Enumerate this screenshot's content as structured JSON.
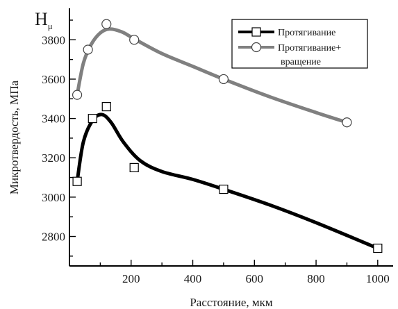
{
  "chart_data": {
    "type": "line",
    "corner_label": {
      "main": "H",
      "sub": "μ"
    },
    "xlabel": "Расстояние, мкм",
    "ylabel": "Микротвердость, МПа",
    "xlim": [
      0,
      1050
    ],
    "ylim": [
      2650,
      3960
    ],
    "x_ticks": [
      200,
      400,
      600,
      800,
      1000
    ],
    "y_ticks": [
      2800,
      3000,
      3200,
      3400,
      3600,
      3800
    ],
    "grid": false,
    "legend_position": "top-right",
    "series": [
      {
        "name": "Протягивание",
        "color": "#000000",
        "marker": "square",
        "points": [
          {
            "x": 25,
            "y": 3080
          },
          {
            "x": 75,
            "y": 3400
          },
          {
            "x": 120,
            "y": 3460
          },
          {
            "x": 210,
            "y": 3150
          },
          {
            "x": 500,
            "y": 3040
          },
          {
            "x": 1000,
            "y": 2740
          }
        ],
        "curve": [
          {
            "x": 25,
            "y": 3080
          },
          {
            "x": 45,
            "y": 3280
          },
          {
            "x": 75,
            "y": 3390
          },
          {
            "x": 105,
            "y": 3420
          },
          {
            "x": 135,
            "y": 3380
          },
          {
            "x": 175,
            "y": 3280
          },
          {
            "x": 230,
            "y": 3185
          },
          {
            "x": 300,
            "y": 3130
          },
          {
            "x": 400,
            "y": 3090
          },
          {
            "x": 500,
            "y": 3040
          },
          {
            "x": 650,
            "y": 2960
          },
          {
            "x": 800,
            "y": 2870
          },
          {
            "x": 1000,
            "y": 2740
          }
        ]
      },
      {
        "name_lines": [
          "Протягивание+",
          "вращение"
        ],
        "color": "#808080",
        "marker": "circle",
        "points": [
          {
            "x": 25,
            "y": 3520
          },
          {
            "x": 60,
            "y": 3750
          },
          {
            "x": 120,
            "y": 3880
          },
          {
            "x": 210,
            "y": 3800
          },
          {
            "x": 500,
            "y": 3600
          },
          {
            "x": 900,
            "y": 3380
          }
        ],
        "curve": [
          {
            "x": 25,
            "y": 3520
          },
          {
            "x": 45,
            "y": 3680
          },
          {
            "x": 70,
            "y": 3775
          },
          {
            "x": 100,
            "y": 3835
          },
          {
            "x": 130,
            "y": 3855
          },
          {
            "x": 170,
            "y": 3840
          },
          {
            "x": 210,
            "y": 3805
          },
          {
            "x": 300,
            "y": 3730
          },
          {
            "x": 400,
            "y": 3665
          },
          {
            "x": 500,
            "y": 3600
          },
          {
            "x": 650,
            "y": 3510
          },
          {
            "x": 800,
            "y": 3430
          },
          {
            "x": 900,
            "y": 3380
          }
        ]
      }
    ]
  }
}
